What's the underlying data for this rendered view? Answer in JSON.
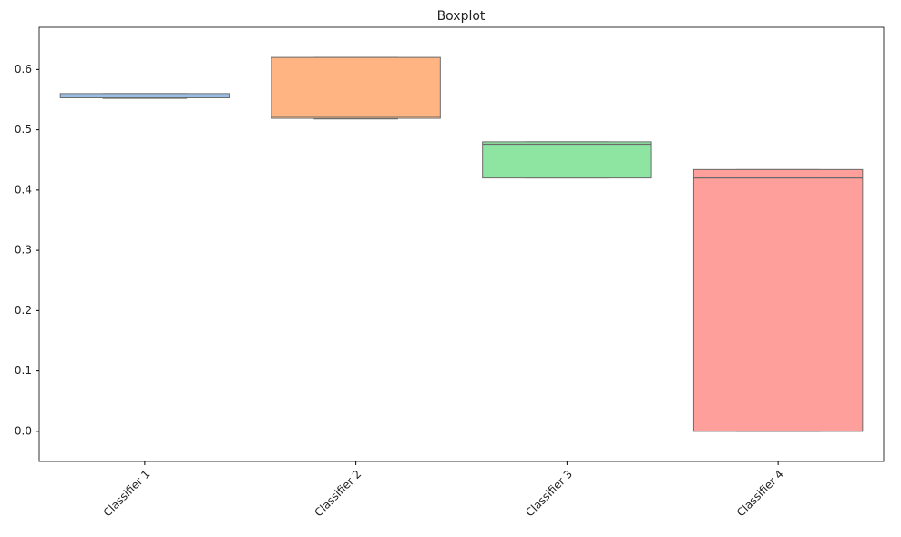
{
  "chart_data": {
    "type": "box",
    "title": "Boxplot",
    "categories": [
      "Classifier 1",
      "Classifier 2",
      "Classifier 3",
      "Classifier 4"
    ],
    "colors": [
      "#a1c9f4",
      "#ffb482",
      "#8de5a1",
      "#ff9f9b"
    ],
    "boxes": [
      {
        "min": 0.552,
        "q1": 0.553,
        "median": 0.556,
        "q3": 0.56,
        "max": 0.56
      },
      {
        "min": 0.518,
        "q1": 0.519,
        "median": 0.522,
        "q3": 0.62,
        "max": 0.62
      },
      {
        "min": 0.42,
        "q1": 0.42,
        "median": 0.476,
        "q3": 0.48,
        "max": 0.48
      },
      {
        "min": 0,
        "q1": 0,
        "median": 0.42,
        "q3": 0.434,
        "max": 0.434
      }
    ],
    "ylim": [
      -0.05,
      0.67
    ],
    "yticks": [
      {
        "value": 0,
        "label": "0.0"
      },
      0.1,
      0.2,
      0.3,
      0.4,
      0.5,
      0.6
    ],
    "grid": false
  }
}
